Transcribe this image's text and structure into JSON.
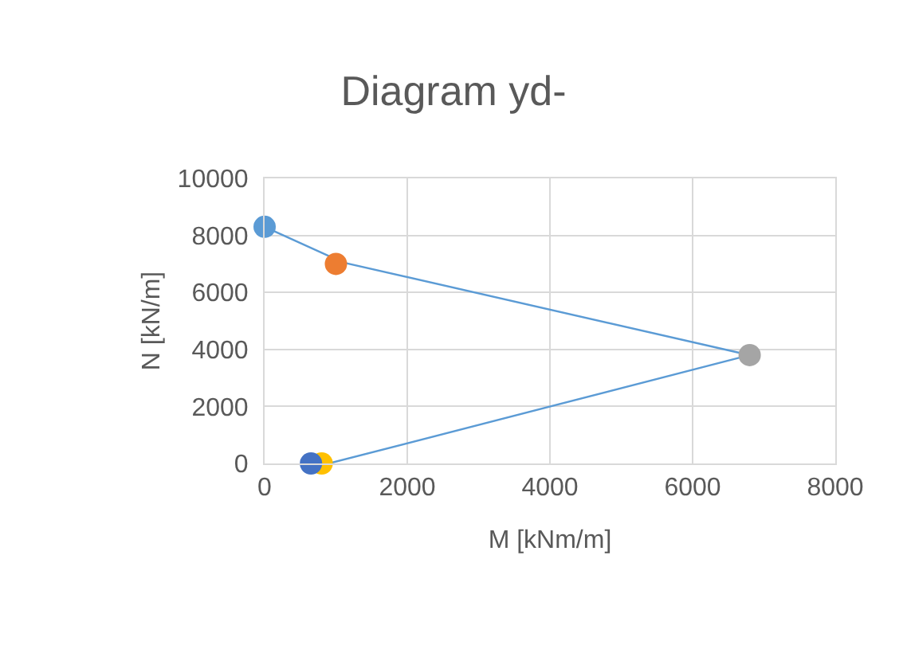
{
  "chart_data": {
    "type": "scatter",
    "title": "Diagram yd-",
    "xlabel": "M [kNm/m]",
    "ylabel": "N [kN/m]",
    "xlim": [
      0,
      8000
    ],
    "xticks": [
      0,
      2000,
      4000,
      6000,
      8000
    ],
    "ylim": [
      0,
      10000
    ],
    "yticks": [
      0,
      2000,
      4000,
      6000,
      8000,
      10000
    ],
    "grid": true,
    "marker": "circle",
    "series": [
      {
        "type": "line",
        "color": "#5b9bd5",
        "x": [
          0,
          1100,
          6800,
          900
        ],
        "values": [
          8300,
          7050,
          3800,
          0
        ],
        "marker": "none"
      },
      {
        "color": "#5b9bd5",
        "x": [
          0
        ],
        "values": [
          8300
        ]
      },
      {
        "color": "#ed7d31",
        "x": [
          1000
        ],
        "values": [
          7000
        ]
      },
      {
        "color": "#a5a5a5",
        "x": [
          6800
        ],
        "values": [
          3800
        ]
      },
      {
        "color": "#ffc000",
        "x": [
          800
        ],
        "values": [
          0
        ]
      },
      {
        "color": "#4472c4",
        "x": [
          650
        ],
        "values": [
          0
        ]
      }
    ]
  }
}
